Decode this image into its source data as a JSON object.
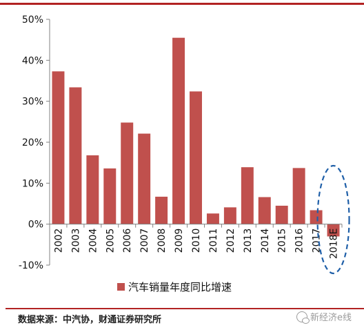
{
  "colors": {
    "rule": "#b22222",
    "bar": "#c0504d",
    "ellipse": "#1f5fa8",
    "axis": "#808080"
  },
  "source_text": "数据来源：中汽协，财通证券研究所",
  "watermark_text": "新经济e线",
  "watermark_icon": "wechat-icon",
  "chart_data": {
    "type": "bar",
    "categories": [
      "2002",
      "2003",
      "2004",
      "2005",
      "2006",
      "2007",
      "2008",
      "2009",
      "2010",
      "2011",
      "2012",
      "2013",
      "2014",
      "2015",
      "2016",
      "2017",
      "2018E"
    ],
    "series": [
      {
        "name": "汽车销量年度同比增速",
        "values": [
          37.3,
          33.4,
          16.8,
          13.6,
          24.8,
          22.1,
          6.7,
          45.5,
          32.4,
          2.6,
          4.1,
          13.9,
          6.6,
          4.5,
          13.7,
          3.4,
          -3.0
        ]
      }
    ],
    "yticks": [
      "-10%",
      "0%",
      "10%",
      "20%",
      "30%",
      "40%",
      "50%"
    ],
    "ylim": [
      -10,
      50
    ],
    "legend_position": "bottom",
    "highlight": "2018E"
  }
}
